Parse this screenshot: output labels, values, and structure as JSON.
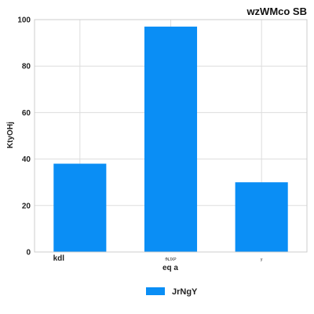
{
  "chart_data": {
    "type": "bar",
    "title": "wzWMco SB",
    "xlabel": "eq  a",
    "ylabel": "KtyOHj",
    "categories": [
      "kdl",
      "fNJXP",
      "y"
    ],
    "series": [
      {
        "name": "JrNgY",
        "values": [
          38,
          97,
          30
        ],
        "color": "#0a8ef5"
      }
    ],
    "ylim": [
      0,
      100
    ],
    "yticks": [
      0,
      20,
      40,
      60,
      80,
      100
    ],
    "grid": true,
    "legend": "bottom-center"
  }
}
